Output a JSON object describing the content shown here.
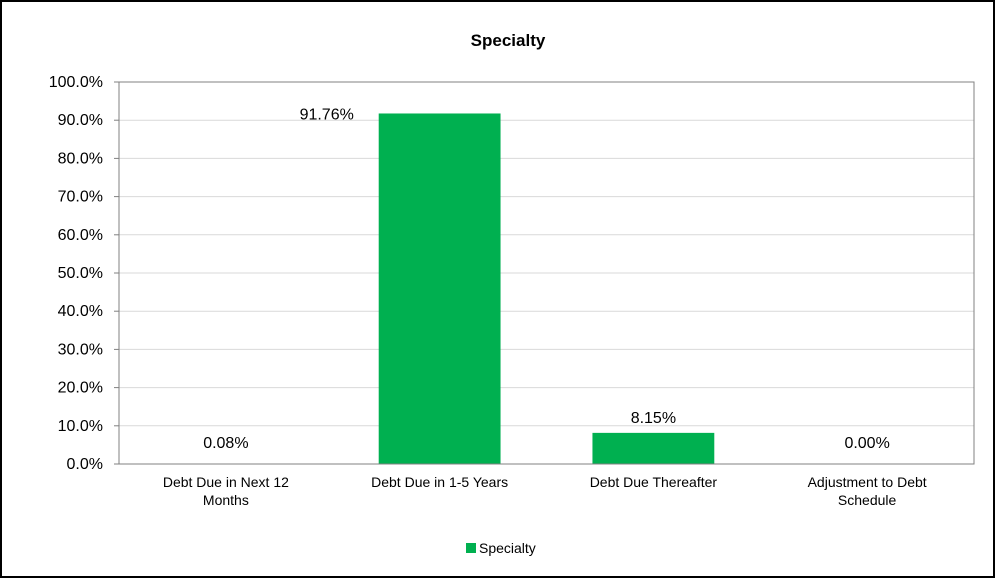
{
  "chart_data": {
    "type": "bar",
    "title": "Specialty",
    "categories": [
      [
        "Debt Due in Next 12",
        "Months"
      ],
      [
        "Debt Due in 1-5 Years"
      ],
      [
        "Debt Due Thereafter"
      ],
      [
        "Adjustment to Debt",
        "Schedule"
      ]
    ],
    "series": [
      {
        "name": "Specialty",
        "values": [
          0.08,
          91.76,
          8.15,
          0.0
        ],
        "value_labels": [
          "0.08%",
          "91.76%",
          "8.15%",
          "0.00%"
        ],
        "color": "#00B050"
      }
    ],
    "y_ticks": [
      "0.0%",
      "10.0%",
      "20.0%",
      "30.0%",
      "40.0%",
      "50.0%",
      "60.0%",
      "70.0%",
      "80.0%",
      "90.0%",
      "100.0%"
    ],
    "ylim": [
      0,
      100
    ],
    "grid": true,
    "legend": "bottom"
  }
}
